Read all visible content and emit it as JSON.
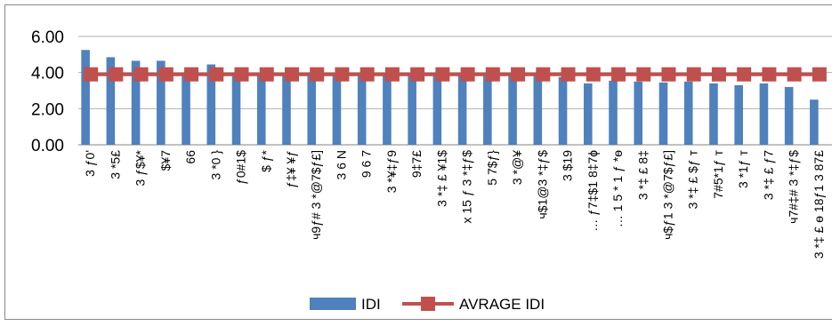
{
  "chart_data": {
    "type": "bar",
    "title": "",
    "xlabel": "",
    "ylabel": "",
    "ylim": [
      0,
      6
    ],
    "yticks": [
      "0.00",
      "2.00",
      "4.00",
      "6.00"
    ],
    "grid": true,
    "legend_position": "bottom",
    "categories": [
      "3 ƒ0'",
      "3 *5£",
      "3 ƒ$¥*",
      "$¥7",
      "66",
      "3 *0 }",
      "ƒ0#1$",
      "$ ƒ*",
      "ƒ‡¥ ¥ƒ",
      "ч9ƒ# 3 *@7$ƒ£]",
      "3 6 N",
      "9 6 7",
      "3 *¥‡ƒ9",
      "9‡7£",
      "3 *‡ £ ¥1$",
      "x 15 ƒ 3 *‡ƒ$",
      "5 7$ƒ}",
      "3 *@¥",
      "ч$1@3 *‡ƒ$",
      "3 $19",
      "… ƒ7‡$1 8‡7ɸ",
      "… 1 5 * 1 ƒ *ɵ",
      "3 *‡ £ 8‡",
      "ч$ƒ1 3 *@7$ƒ£]",
      "3 *‡ £ $ƒ т",
      "7#5*1ƒ т",
      "3 *1ƒ т",
      "3 *‡ £ ƒ7",
      "ч7#‡# 3 *‡ƒ$",
      "3 *‡ £ ɵ 18ƒ1 3 87£"
    ],
    "series": [
      {
        "name": "IDI",
        "type": "bar",
        "color": "#4f81bd",
        "values": [
          5.25,
          4.85,
          4.65,
          4.65,
          4.0,
          4.45,
          4.0,
          3.95,
          3.95,
          3.9,
          3.9,
          3.9,
          3.9,
          3.9,
          3.9,
          3.85,
          3.85,
          3.85,
          3.85,
          3.75,
          3.4,
          3.55,
          3.5,
          3.45,
          3.5,
          3.4,
          3.3,
          3.4,
          3.2,
          2.5
        ]
      },
      {
        "name": "AVRAGE IDI",
        "type": "line",
        "color": "#c0504d",
        "values": [
          3.9,
          3.9,
          3.9,
          3.9,
          3.9,
          3.9,
          3.9,
          3.9,
          3.9,
          3.9,
          3.9,
          3.9,
          3.9,
          3.9,
          3.9,
          3.9,
          3.9,
          3.9,
          3.9,
          3.9,
          3.9,
          3.9,
          3.9,
          3.9,
          3.9,
          3.9,
          3.9,
          3.9,
          3.9,
          3.9
        ]
      }
    ]
  }
}
